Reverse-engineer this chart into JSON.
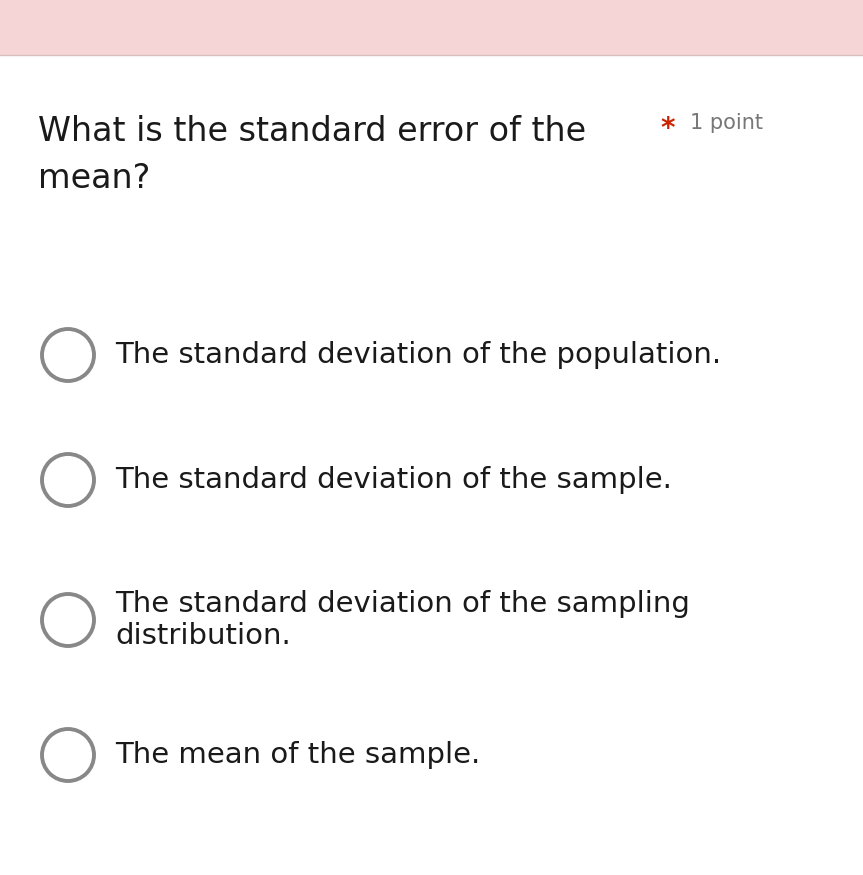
{
  "background_color": "#ffffff",
  "header_bar_color": "#f5d5d5",
  "header_bar_border_color": "#d8c0c0",
  "question_text_line1": "What is the standard error of the",
  "question_text_line2": "mean?",
  "asterisk": "*",
  "asterisk_color": "#cc2200",
  "point_label": "1 point",
  "point_label_color": "#777777",
  "options": [
    "The standard deviation of the population.",
    "The standard deviation of the sample.",
    "The standard deviation of the sampling\ndistribution.",
    "The mean of the sample."
  ],
  "option_text_color": "#1a1a1a",
  "circle_edge_color": "#888888",
  "circle_face_color": "#ffffff",
  "question_font_size": 24,
  "option_font_size": 21,
  "point_font_size": 15,
  "asterisk_font_size": 20,
  "fig_width": 8.63,
  "fig_height": 8.75,
  "dpi": 100
}
